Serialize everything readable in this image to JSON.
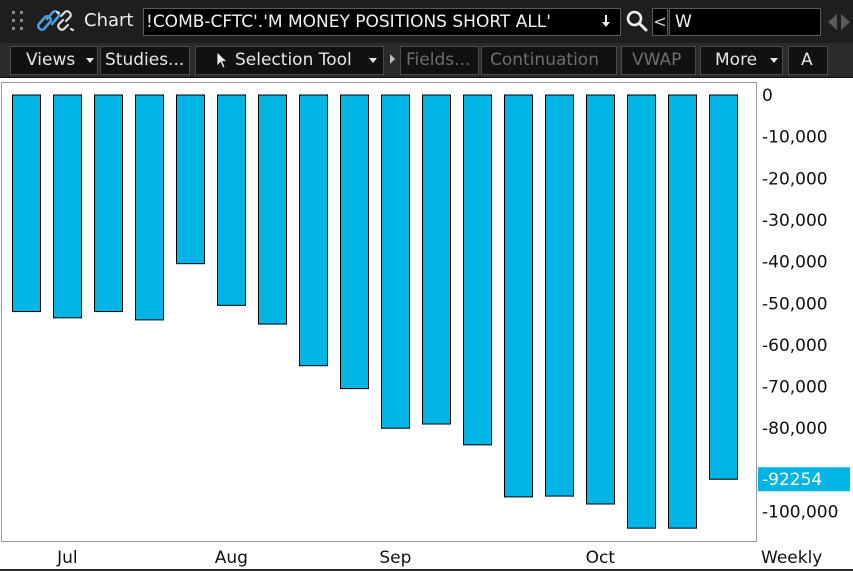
{
  "header": {
    "title": "Chart",
    "symbol": "!COMB-CFTC'.'M MONEY POSITIONS SHORT ALL'",
    "compare_button": "<",
    "aggregation": "W"
  },
  "toolbar": {
    "views_label": "Views",
    "studies_label": "Studies...",
    "selection_tool_label": "Selection Tool",
    "fields_label": "Fields...",
    "continuation_label": "Continuation",
    "vwap_label": "VWAP",
    "more_label": "More",
    "overflow_label": "A"
  },
  "colors": {
    "bar_fill": "#00b4e4",
    "bar_stroke": "#000000",
    "current_value_label": "#00b4e4"
  },
  "chart_data": {
    "type": "bar",
    "title": "",
    "xlabel": "",
    "ylabel": "",
    "ylim": [
      -104500,
      400
    ],
    "y_ticks": [
      0,
      -10000,
      -20000,
      -30000,
      -40000,
      -50000,
      -60000,
      -70000,
      -80000,
      -90000,
      -100000
    ],
    "y_tick_labels": [
      "0",
      "-10,000",
      "-20,000",
      "-30,000",
      "-40,000",
      "-50,000",
      "-60,000",
      "-70,000",
      "-80,000",
      "",
      "-100,000"
    ],
    "x_ticks": [
      {
        "label": "Jul",
        "after_bar": 1
      },
      {
        "label": "Aug",
        "after_bar": 5
      },
      {
        "label": "Sep",
        "after_bar": 9
      },
      {
        "label": "Oct",
        "after_bar": 14
      }
    ],
    "period_label": "Weekly",
    "current_value": -92254,
    "current_value_label": "-92254",
    "values": [
      -52000,
      -53500,
      -52000,
      -54000,
      -40500,
      -50500,
      -55000,
      -65000,
      -70500,
      -80000,
      -79000,
      -84000,
      -96500,
      -96300,
      -98200,
      -104000,
      -104000,
      -92254
    ]
  }
}
